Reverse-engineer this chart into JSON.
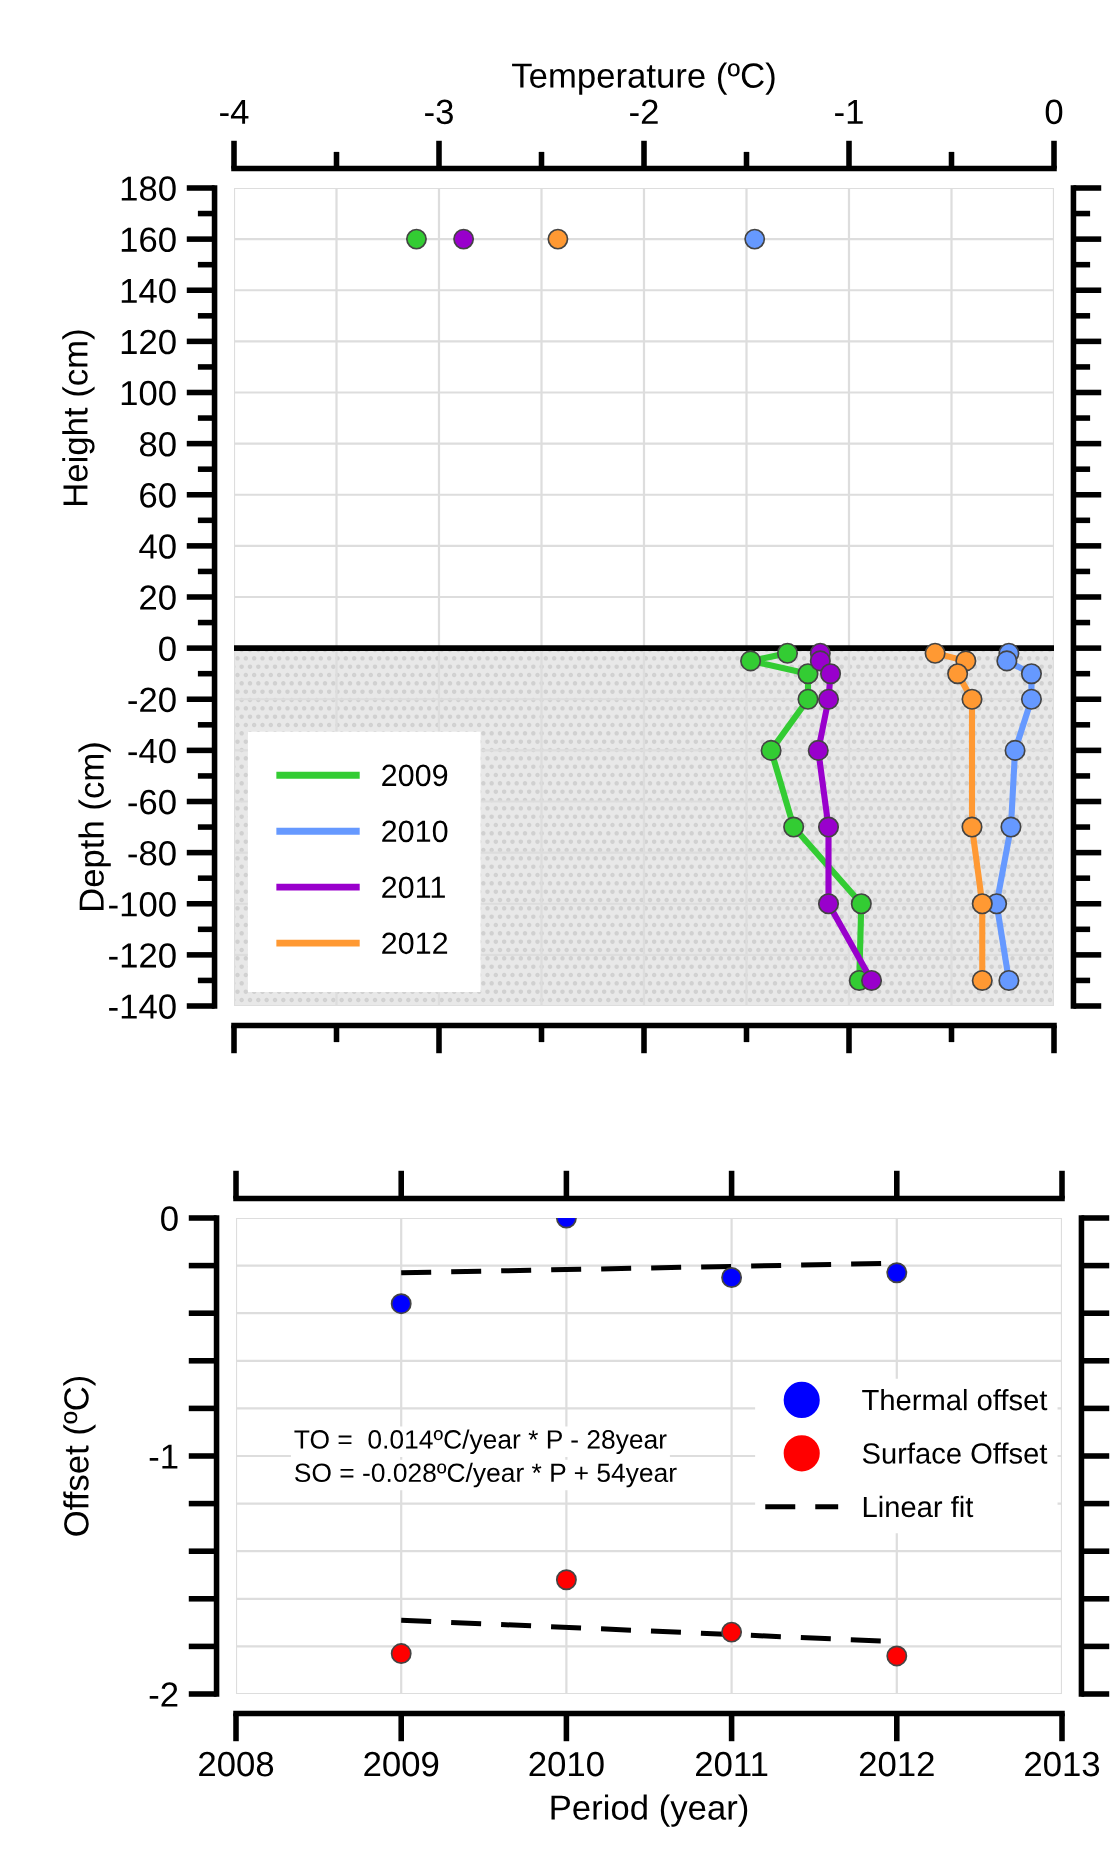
{
  "chart_data": [
    {
      "type": "line",
      "xlabel": "Temperature (ºC)",
      "ylabel": "Height (cm)",
      "annotations": [
        "Depth (cm)"
      ],
      "xlim": [
        -4,
        0
      ],
      "xticks": [
        -4,
        {
          "value": -3.5,
          "label": null
        },
        -3,
        {
          "value": -2.5,
          "label": null
        },
        -2,
        {
          "value": -1.5,
          "label": null
        },
        -1,
        {
          "value": -0.5,
          "label": null
        },
        0
      ],
      "ylim": [
        -140,
        180
      ],
      "yticks": [
        180,
        160,
        140,
        120,
        100,
        80,
        60,
        40,
        20,
        0,
        -20,
        -40,
        -60,
        -80,
        -100,
        -120,
        -140
      ],
      "grid": true,
      "legend": "bottom left",
      "marker": "circle",
      "line_style": "solid",
      "bands": [
        {
          "axis": "y",
          "from": -140,
          "to": 0,
          "color": "#e8e8e8"
        }
      ],
      "ref_lines": [
        {
          "axis": "y",
          "value": 0,
          "color": "#000000"
        }
      ],
      "series": [
        {
          "name": "2009",
          "color": "#33cc33",
          "x": [
            -1.3,
            -1.48,
            -1.2,
            -1.2,
            -1.38,
            -1.27,
            -0.94,
            -0.95
          ],
          "values": [
            -2,
            -5,
            -10,
            -20,
            -40,
            -70,
            -100,
            -130
          ]
        },
        {
          "name": "2010",
          "color": "#6699ff",
          "x": [
            -0.22,
            -0.23,
            -0.11,
            -0.11,
            -0.19,
            -0.21,
            -0.28,
            -0.22
          ],
          "values": [
            -2,
            -5,
            -10,
            -20,
            -40,
            -70,
            -100,
            -130
          ]
        },
        {
          "name": "2011",
          "color": "#9900cc",
          "x": [
            -1.14,
            -1.14,
            -1.09,
            -1.1,
            -1.15,
            -1.1,
            -1.1,
            -0.89
          ],
          "values": [
            -2,
            -5,
            -10,
            -20,
            -40,
            -70,
            -100,
            -130
          ]
        },
        {
          "name": "2012",
          "color": "#ff9933",
          "x": [
            -0.58,
            -0.43,
            -0.47,
            -0.4,
            -0.4,
            -0.35,
            -0.35
          ],
          "values": [
            -2,
            -5,
            -10,
            -20,
            -70,
            -100,
            -130
          ]
        },
        {
          "type": "scatter",
          "color": "#33cc33",
          "x": [
            -3.11
          ],
          "values": [
            160
          ]
        },
        {
          "type": "scatter",
          "color": "#6699ff",
          "x": [
            -1.46
          ],
          "values": [
            160
          ]
        },
        {
          "type": "scatter",
          "color": "#9900cc",
          "x": [
            -2.88
          ],
          "values": [
            160
          ]
        },
        {
          "type": "scatter",
          "color": "#ff9933",
          "x": [
            -2.42
          ],
          "values": [
            160
          ]
        }
      ]
    },
    {
      "type": "scatter",
      "xlabel": "Period (year)",
      "ylabel": "Offset (ºC)",
      "annotations": [
        "TO =  0.014ºC/year * P - 28year",
        "SO = -0.028ºC/year * P + 54year"
      ],
      "xlim": [
        2008,
        2013
      ],
      "xticks": [
        2008,
        2009,
        2010,
        2011,
        2012,
        2013
      ],
      "ylim": [
        -2,
        0
      ],
      "yticks": [
        0,
        {
          "value": -0.2,
          "label": null
        },
        {
          "value": -0.4,
          "label": null
        },
        {
          "value": -0.6,
          "label": null
        },
        {
          "value": -0.8,
          "label": null
        },
        -1,
        {
          "value": -1.2,
          "label": null
        },
        {
          "value": -1.4,
          "label": null
        },
        {
          "value": -1.6,
          "label": null
        },
        {
          "value": -1.8,
          "label": null
        },
        -2
      ],
      "grid": true,
      "legend": "right",
      "marker": "circle",
      "series": [
        {
          "name": "Thermal offset",
          "color": "#0000ff",
          "x": [
            2009,
            2010,
            2011,
            2012
          ],
          "values": [
            -0.36,
            0.0,
            -0.25,
            -0.23
          ]
        },
        {
          "name": "Surface Offset",
          "color": "#ff0000",
          "x": [
            2009,
            2010,
            2011,
            2012
          ],
          "values": [
            -1.83,
            -1.52,
            -1.74,
            -1.84
          ]
        },
        {
          "name": "Linear fit",
          "type": "line",
          "marker": "none",
          "line_style": "dashed",
          "color": "#000000",
          "x": [
            2009,
            2012
          ],
          "values": [
            -0.23,
            -0.19
          ]
        },
        {
          "type": "line",
          "marker": "none",
          "line_style": "dashed",
          "color": "#000000",
          "x": [
            2009,
            2012
          ],
          "values": [
            -1.69,
            -1.78
          ]
        }
      ]
    }
  ]
}
